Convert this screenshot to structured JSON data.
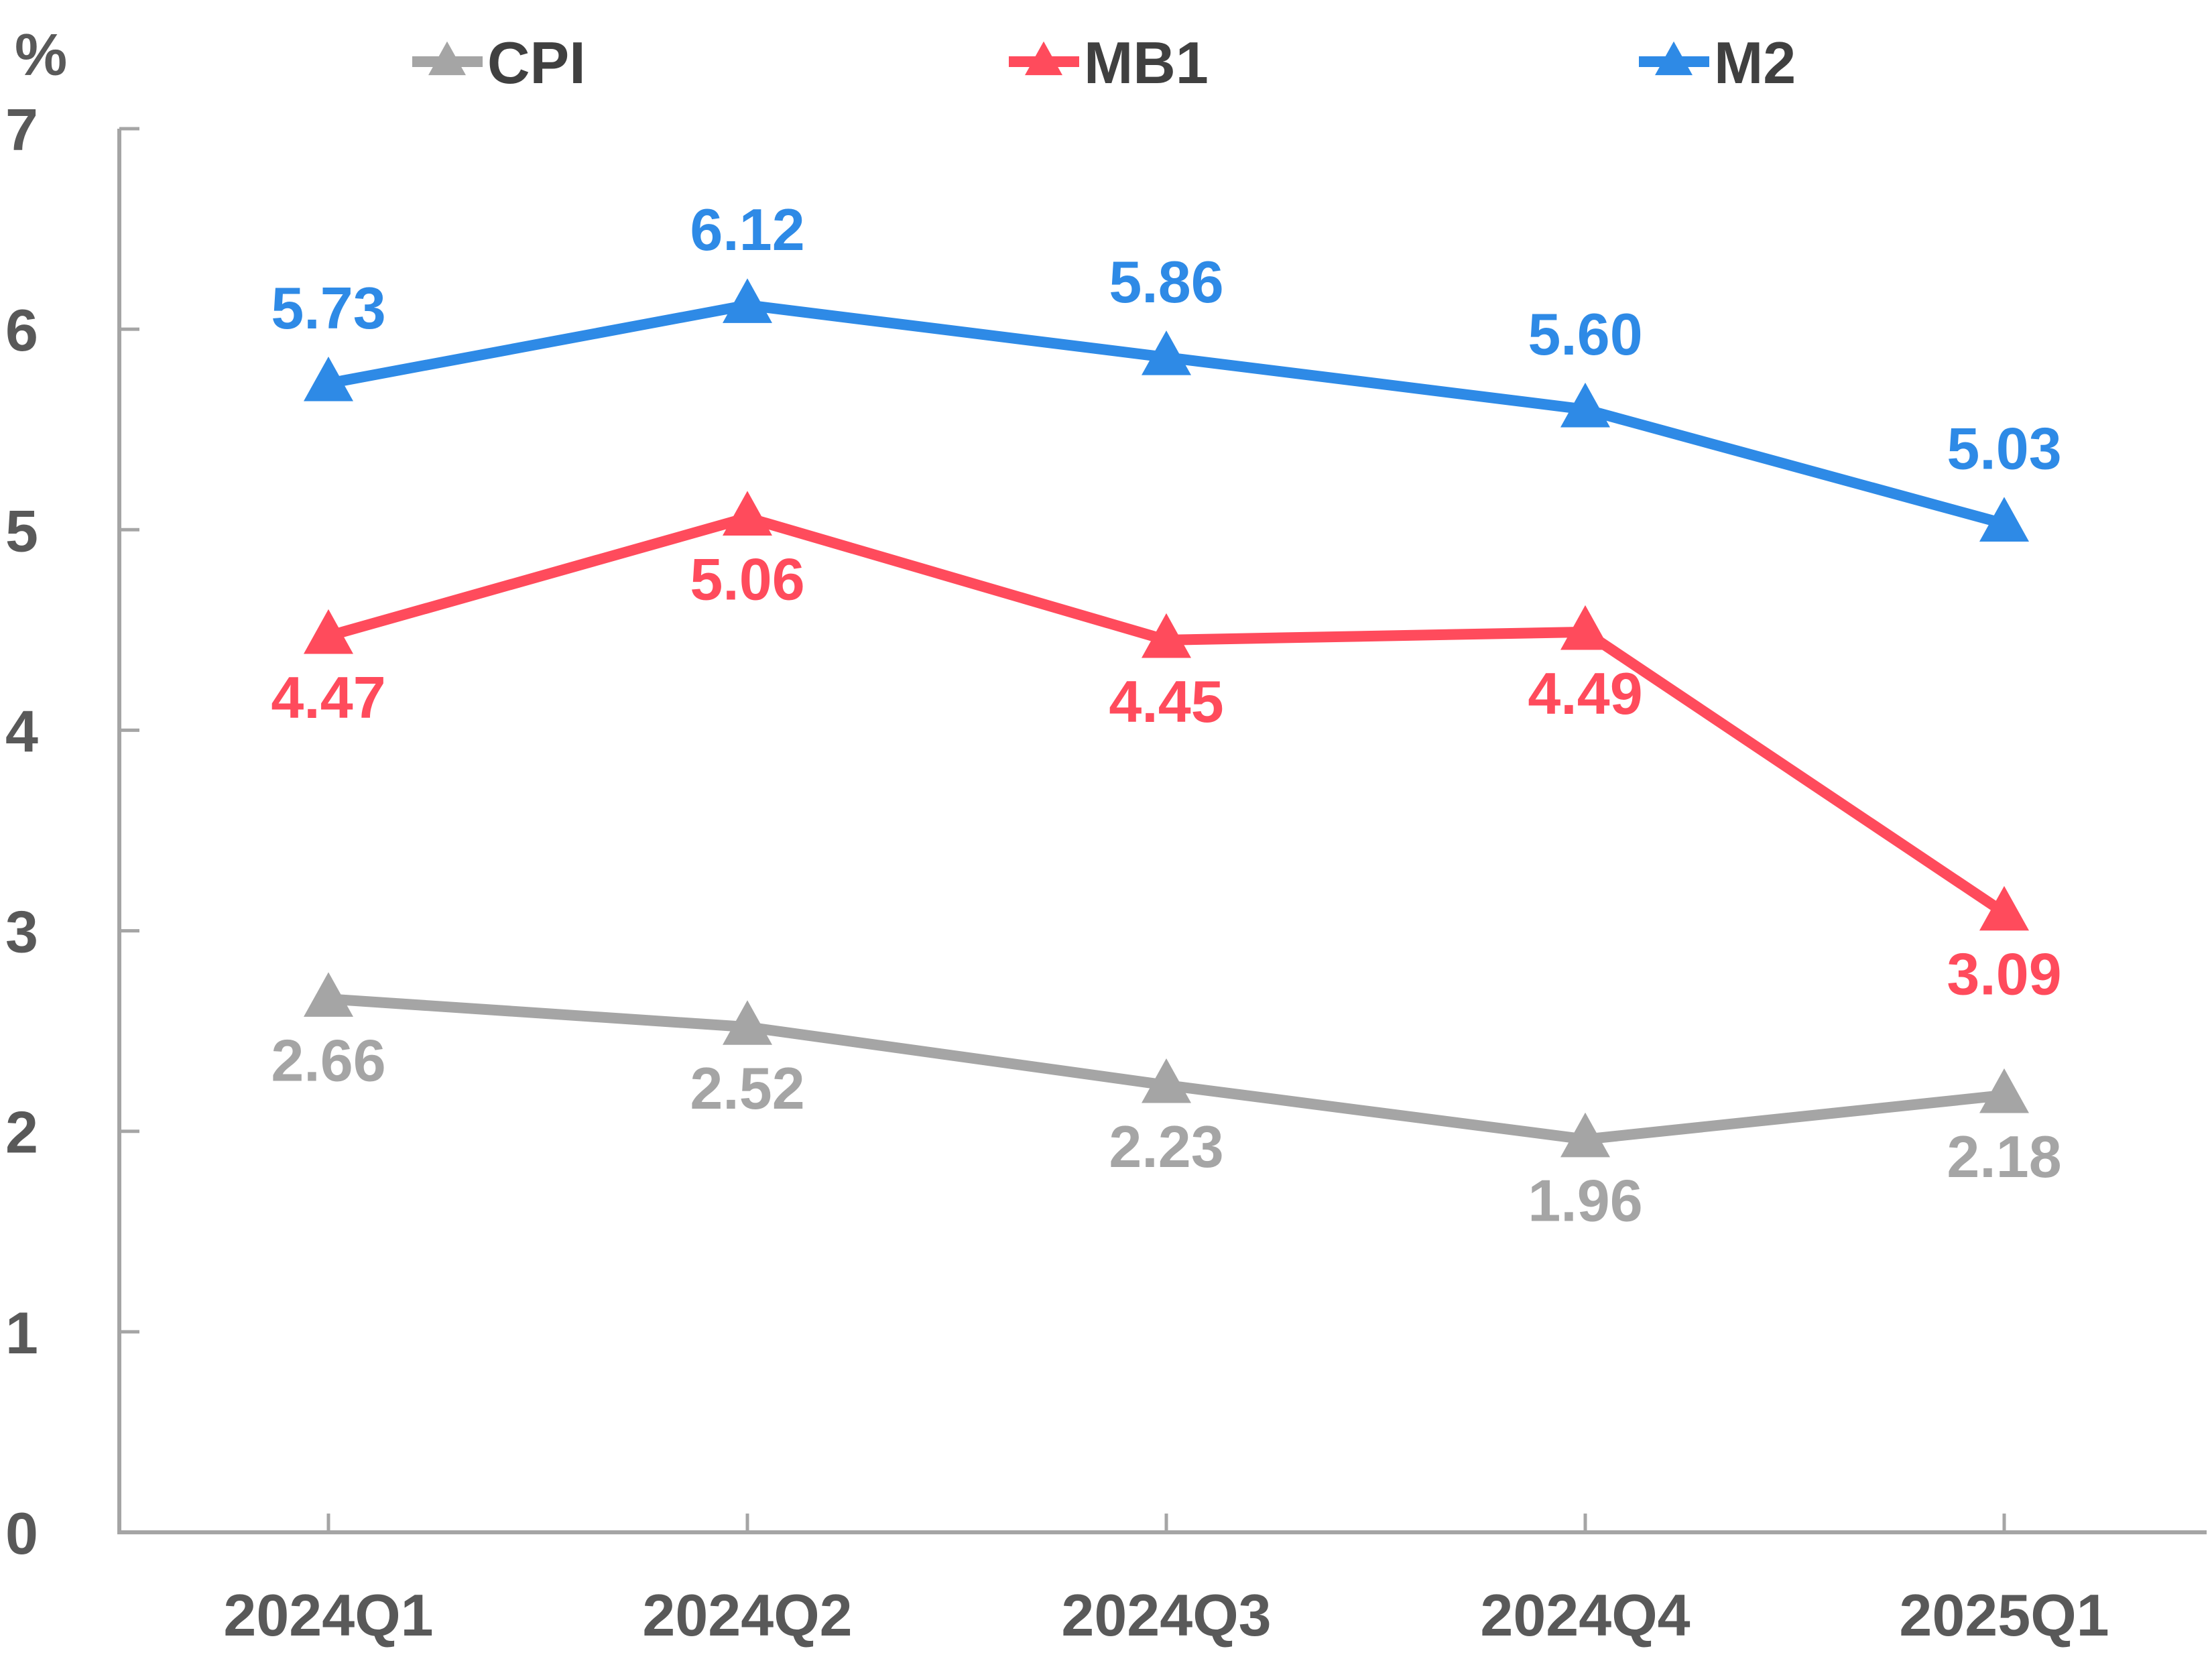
{
  "chart_data": {
    "type": "line",
    "title": "",
    "ylabel": "%",
    "xlabel": "",
    "ylim": [
      0,
      7
    ],
    "yticks": [
      "0",
      "1",
      "2",
      "3",
      "4",
      "5",
      "6",
      "7"
    ],
    "categories": [
      "2024Q1",
      "2024Q2",
      "2024Q3",
      "2024Q4",
      "2025Q1"
    ],
    "legend_position": "top",
    "grid": false,
    "series": [
      {
        "name": "CPI",
        "color": "#a5a5a5",
        "marker": "triangle",
        "values": [
          2.66,
          2.52,
          2.23,
          1.96,
          2.18
        ],
        "labels": [
          "2.66",
          "2.52",
          "2.23",
          "1.96",
          "2.18"
        ],
        "label_position": "below"
      },
      {
        "name": "MB1",
        "color": "#ff4b5c",
        "marker": "triangle",
        "values": [
          4.47,
          5.06,
          4.45,
          4.49,
          3.09
        ],
        "labels": [
          "4.47",
          "5.06",
          "4.45",
          "4.49",
          "3.09"
        ],
        "label_position": "below"
      },
      {
        "name": "M2",
        "color": "#2e8ae6",
        "marker": "triangle",
        "values": [
          5.73,
          6.12,
          5.86,
          5.6,
          5.03
        ],
        "labels": [
          "5.73",
          "6.12",
          "5.86",
          "5.60",
          "5.03"
        ],
        "label_position": "above"
      }
    ]
  }
}
